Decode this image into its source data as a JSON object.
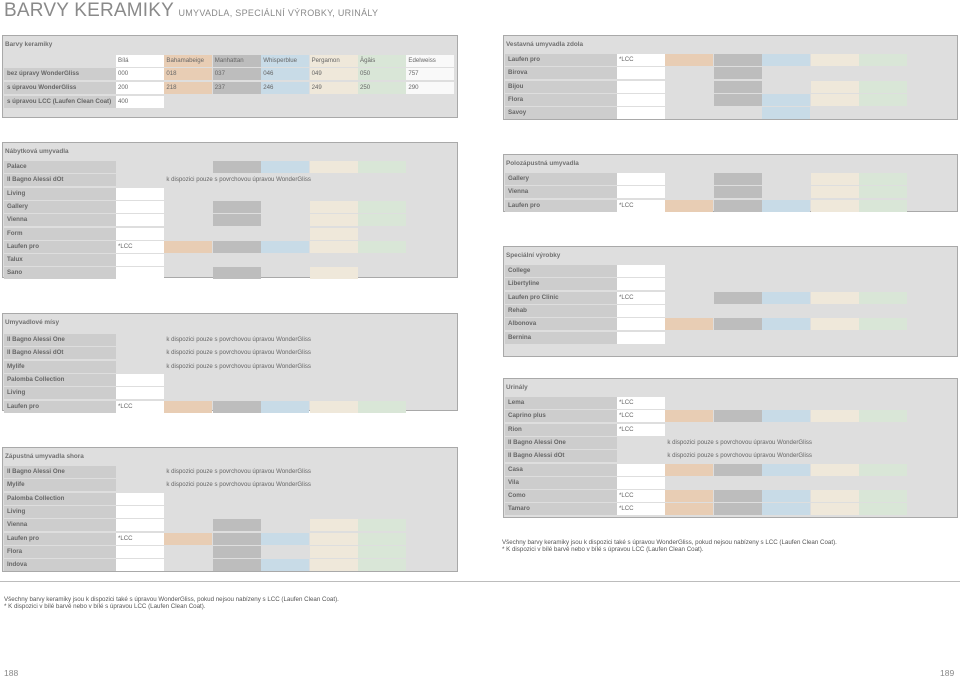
{
  "page": {
    "title": "BARVY KERAMIKY",
    "subtitle": "UMYVADLA, SPECIÁLNÍ VÝROBKY, URINÁLY",
    "left_page_number": "188",
    "right_page_number": "189"
  },
  "colors": {
    "white": "#ffffff",
    "bahamabeige": "#e8cdb4",
    "manhattan": "#bdbdbd",
    "whisperblue": "#c8dbe7",
    "pergamon": "#efe8da",
    "agais": "#d9e6d7",
    "edelweiss": "#f9f9f9"
  },
  "barvy": {
    "title": "Barvy keramiky",
    "headers": [
      "Bílá",
      "Bahamabeige",
      "Manhattan",
      "Whisperblue",
      "Pergamon",
      "Ägäis",
      "Edelweiss"
    ],
    "rows": [
      {
        "label": "bez úpravy WonderGliss",
        "codes": [
          "000",
          "018",
          "037",
          "046",
          "049",
          "050",
          "757"
        ]
      },
      {
        "label": "s úpravou WonderGliss",
        "codes": [
          "200",
          "218",
          "237",
          "246",
          "249",
          "250",
          "290"
        ]
      },
      {
        "label": "s úpravou LCC (Laufen Clean Coat)",
        "codes": [
          "400",
          "",
          "",
          "",
          "",
          "",
          ""
        ]
      }
    ]
  },
  "notes": {
    "lcc": "*LCC",
    "wondergliss": "k dispozici pouze s povrchovou úpravou WonderGliss"
  },
  "nabytkova": {
    "title": "Nábytková umyvadla",
    "rows": [
      {
        "label": "Palace",
        "lcc": true,
        "c": [
          0,
          0,
          1,
          1,
          1,
          1,
          0
        ]
      },
      {
        "label": "Il Bagno Alessi dOt",
        "note": true
      },
      {
        "label": "Living",
        "c": [
          1,
          0,
          0,
          0,
          0,
          0,
          0
        ]
      },
      {
        "label": "Gallery",
        "c": [
          1,
          0,
          1,
          0,
          1,
          1,
          0
        ]
      },
      {
        "label": "Vienna",
        "c": [
          1,
          0,
          1,
          0,
          1,
          1,
          0
        ]
      },
      {
        "label": "Form",
        "c": [
          1,
          0,
          0,
          0,
          1,
          0,
          0
        ]
      },
      {
        "label": "Laufen pro",
        "lcc": true,
        "c": [
          1,
          1,
          1,
          1,
          1,
          1,
          0
        ]
      },
      {
        "label": "Talux",
        "c": [
          1,
          0,
          0,
          0,
          0,
          0,
          0
        ]
      },
      {
        "label": "Sano",
        "c": [
          1,
          0,
          1,
          0,
          1,
          0,
          0
        ]
      }
    ]
  },
  "misy": {
    "title": "Umyvadlové mísy",
    "rows": [
      {
        "label": "Il Bagno Alessi One",
        "note": true
      },
      {
        "label": "Il Bagno Alessi dOt",
        "note": true
      },
      {
        "label": "Mylife",
        "note": true
      },
      {
        "label": "Palomba Collection",
        "c": [
          1,
          0,
          0,
          0,
          0,
          0,
          0
        ]
      },
      {
        "label": "Living",
        "c": [
          1,
          0,
          0,
          0,
          0,
          0,
          0
        ]
      },
      {
        "label": "Laufen pro",
        "lcc": true,
        "c": [
          1,
          1,
          1,
          1,
          1,
          1,
          0
        ]
      }
    ]
  },
  "shora": {
    "title": "Zápustná umyvadla shora",
    "rows": [
      {
        "label": "Il Bagno Alessi One",
        "note": true
      },
      {
        "label": "Mylife",
        "note": true
      },
      {
        "label": "Palomba Collection",
        "c": [
          1,
          0,
          0,
          0,
          0,
          0,
          0
        ]
      },
      {
        "label": "Living",
        "c": [
          1,
          0,
          0,
          0,
          0,
          0,
          0
        ]
      },
      {
        "label": "Vienna",
        "c": [
          1,
          0,
          1,
          0,
          1,
          1,
          0
        ]
      },
      {
        "label": "Laufen pro",
        "lcc": true,
        "c": [
          1,
          1,
          1,
          1,
          1,
          1,
          0
        ]
      },
      {
        "label": "Flora",
        "c": [
          1,
          0,
          1,
          0,
          1,
          1,
          0
        ]
      },
      {
        "label": "Indova",
        "c": [
          1,
          0,
          1,
          1,
          1,
          1,
          0
        ]
      }
    ]
  },
  "vestavna": {
    "title": "Vestavná umyvadla zdola",
    "rows": [
      {
        "label": "Laufen pro",
        "lcc": true,
        "c": [
          1,
          1,
          1,
          1,
          1,
          1,
          0
        ]
      },
      {
        "label": "Birova",
        "c": [
          1,
          0,
          1,
          0,
          0,
          0,
          0
        ]
      },
      {
        "label": "Bijou",
        "c": [
          1,
          0,
          1,
          0,
          1,
          1,
          0
        ]
      },
      {
        "label": "Flora",
        "c": [
          1,
          0,
          1,
          1,
          1,
          1,
          0
        ]
      },
      {
        "label": "Savoy",
        "c": [
          1,
          0,
          0,
          1,
          0,
          0,
          0
        ]
      }
    ]
  },
  "polozapustna": {
    "title": "Polozápustná umyvadla",
    "rows": [
      {
        "label": "Gallery",
        "c": [
          1,
          0,
          1,
          0,
          1,
          1,
          0
        ]
      },
      {
        "label": "Vienna",
        "c": [
          1,
          0,
          1,
          0,
          1,
          1,
          0
        ]
      },
      {
        "label": "Laufen pro",
        "lcc": true,
        "c": [
          1,
          1,
          1,
          1,
          1,
          1,
          0
        ]
      }
    ]
  },
  "specialni": {
    "title": "Speciální výrobky",
    "rows": [
      {
        "label": "College",
        "c": [
          1,
          0,
          0,
          0,
          0,
          0,
          0
        ]
      },
      {
        "label": "Libertyline",
        "c": [
          1,
          0,
          0,
          0,
          0,
          0,
          0
        ]
      },
      {
        "label": "Laufen pro Clinic",
        "lcc": true,
        "c": [
          1,
          0,
          1,
          1,
          1,
          1,
          0
        ]
      },
      {
        "label": "Rehab",
        "c": [
          1,
          0,
          0,
          0,
          0,
          0,
          0
        ]
      },
      {
        "label": "Albonova",
        "c": [
          1,
          1,
          1,
          1,
          1,
          1,
          0
        ]
      },
      {
        "label": "Bernina",
        "c": [
          1,
          0,
          0,
          0,
          0,
          0,
          0
        ]
      }
    ]
  },
  "urinaly": {
    "title": "Urinály",
    "rows": [
      {
        "label": "Lema",
        "lcc": true,
        "c": [
          1,
          0,
          0,
          0,
          0,
          0,
          0
        ]
      },
      {
        "label": "Caprino plus",
        "lcc": true,
        "c": [
          1,
          1,
          1,
          1,
          1,
          1,
          0
        ]
      },
      {
        "label": "Rion",
        "lcc": true,
        "c": [
          1,
          0,
          0,
          0,
          0,
          0,
          0
        ]
      },
      {
        "label": "Il Bagno Alessi One",
        "note": true
      },
      {
        "label": "Il Bagno Alessi dOt",
        "note": true
      },
      {
        "label": "Casa",
        "c": [
          1,
          1,
          1,
          1,
          1,
          1,
          0
        ]
      },
      {
        "label": "Vila",
        "c": [
          1,
          0,
          0,
          0,
          0,
          0,
          0
        ]
      },
      {
        "label": "Como",
        "lcc": true,
        "c": [
          1,
          1,
          1,
          1,
          1,
          1,
          0
        ]
      },
      {
        "label": "Tamaro",
        "lcc": true,
        "c": [
          1,
          1,
          1,
          1,
          1,
          1,
          0
        ]
      }
    ]
  },
  "footnotes": {
    "line1": "Všechny barvy keramiky jsou k dispozici také s úpravou WonderGliss, pokud nejsou nabízeny s LCC (Laufen Clean Coat).",
    "line2": "* K dispozici v bílé barvě nebo v bílé s úpravou LCC (Laufen Clean Coat)."
  }
}
